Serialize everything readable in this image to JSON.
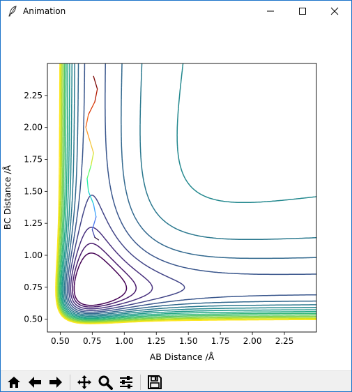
{
  "window": {
    "title": "Animation",
    "icon": "feather-icon",
    "controls": [
      "minimize-icon",
      "maximize-icon",
      "close-icon"
    ]
  },
  "toolbar": {
    "buttons": [
      "home-icon",
      "back-arrow-icon",
      "forward-arrow-icon",
      "pan-icon",
      "zoom-icon",
      "configure-subplots-icon",
      "save-icon"
    ]
  },
  "chart_data": {
    "type": "contour",
    "title": "",
    "xlabel": "AB Distance /Å",
    "ylabel": "BC Distance /Å",
    "xlim": [
      0.4,
      2.5
    ],
    "ylim": [
      0.4,
      2.5
    ],
    "xticks": [
      "0.50",
      "0.75",
      "1.00",
      "1.25",
      "1.50",
      "1.75",
      "2.00",
      "2.25"
    ],
    "yticks": [
      "0.50",
      "0.75",
      "1.00",
      "1.25",
      "1.50",
      "1.75",
      "2.00",
      "2.25"
    ],
    "colormap": "viridis",
    "contour_colors": [
      "#440154",
      "#481a6c",
      "#472f7d",
      "#414487",
      "#39568c",
      "#31688e",
      "#2a788e",
      "#23888e",
      "#1f988b",
      "#22a884",
      "#35b779",
      "#54c568",
      "#7ad151",
      "#a5db36",
      "#d2e21b",
      "#fde725"
    ],
    "trajectory": {
      "points": [
        [
          0.76,
          2.4
        ],
        [
          0.79,
          2.3
        ],
        [
          0.77,
          2.2
        ],
        [
          0.72,
          2.1
        ],
        [
          0.7,
          2.0
        ],
        [
          0.73,
          1.9
        ],
        [
          0.76,
          1.8
        ],
        [
          0.74,
          1.7
        ],
        [
          0.71,
          1.6
        ],
        [
          0.72,
          1.5
        ],
        [
          0.76,
          1.4
        ],
        [
          0.78,
          1.3
        ],
        [
          0.75,
          1.2
        ],
        [
          0.77,
          1.14
        ],
        [
          0.8,
          1.12
        ]
      ],
      "colormap": "turbo"
    }
  }
}
